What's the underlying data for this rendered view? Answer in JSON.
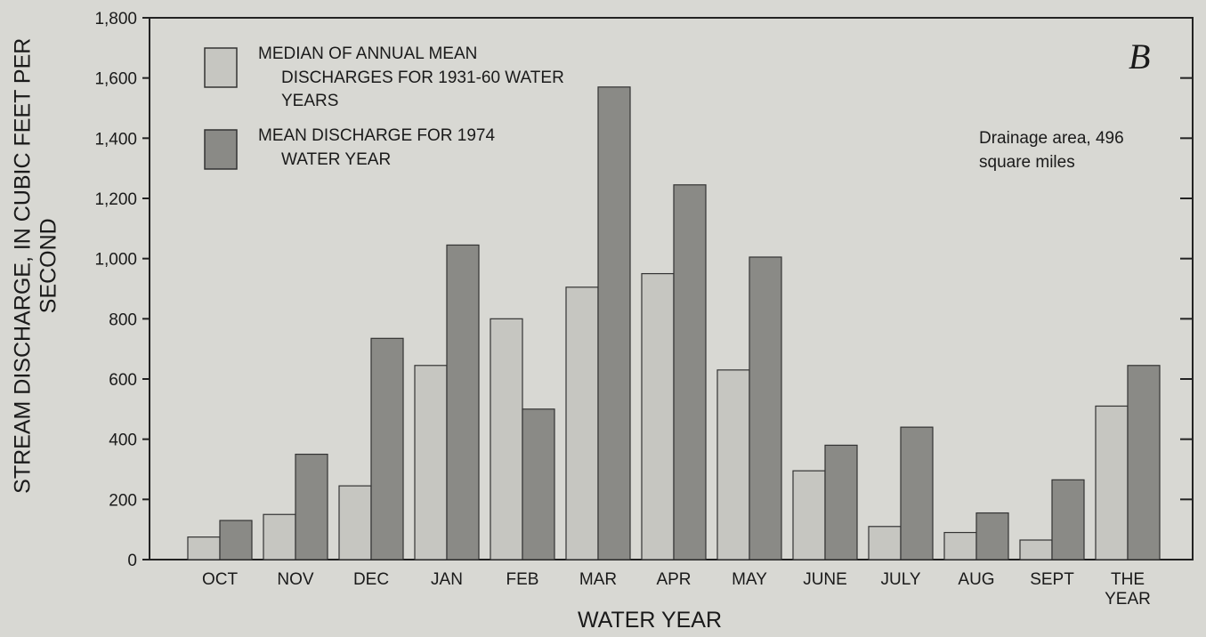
{
  "chart_data": {
    "type": "bar",
    "title_letter": "B",
    "annotation": "Drainage area, 496 square miles",
    "x_label": "WATER YEAR",
    "y_label": "STREAM DISCHARGE, IN CUBIC FEET PER SECOND",
    "categories": [
      "OCT",
      "NOV",
      "DEC",
      "JAN",
      "FEB",
      "MAR",
      "APR",
      "MAY",
      "JUNE",
      "JULY",
      "AUG",
      "SEPT",
      "THE YEAR"
    ],
    "series": [
      {
        "name": "MEDIAN OF ANNUAL MEAN DISCHARGES FOR 1931-60 WATER YEARS",
        "color": "#c6c6c1",
        "values": [
          75,
          150,
          245,
          645,
          800,
          905,
          950,
          630,
          295,
          110,
          90,
          65,
          510
        ]
      },
      {
        "name": "MEAN DISCHARGE FOR 1974 WATER YEAR",
        "color": "#8a8a86",
        "values": [
          130,
          350,
          735,
          1045,
          500,
          1570,
          1245,
          1005,
          380,
          440,
          155,
          265,
          645
        ]
      }
    ],
    "ylim": [
      0,
      1800
    ],
    "yticks": [
      0,
      200,
      400,
      600,
      800,
      {
        "value": 1000,
        "label": "1,000"
      },
      {
        "value": 1200,
        "label": "1,200"
      },
      {
        "value": 1400,
        "label": "1,400"
      },
      {
        "value": 1600,
        "label": "1,600"
      },
      {
        "value": 1800,
        "label": "1,800"
      }
    ],
    "grid": false
  }
}
